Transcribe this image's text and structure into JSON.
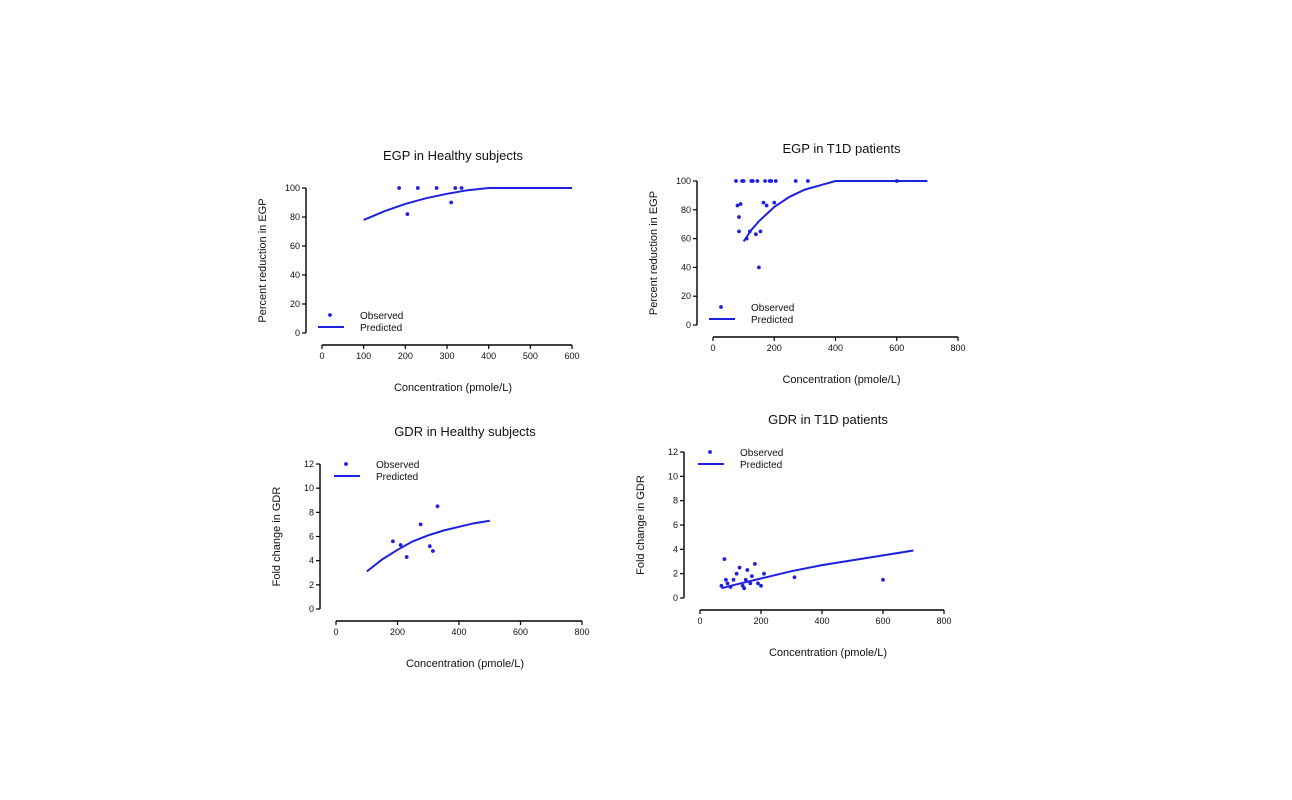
{
  "chart_data": [
    {
      "id": "egp-healthy",
      "type": "scatter",
      "title": "EGP in Healthy subjects",
      "xlabel": "Concentration (pmole/L)",
      "ylabel": "Percent reduction in EGP",
      "xlim": [
        0,
        600
      ],
      "ylim": [
        0,
        100
      ],
      "xticks": [
        "0",
        "100",
        "200",
        "300",
        "400",
        "500",
        "600"
      ],
      "yticks": [
        "0",
        "20",
        "40",
        "60",
        "80",
        "100"
      ],
      "legend": {
        "placement": "bottom-left",
        "observed": "Observed",
        "predicted": "Predicted"
      },
      "series": [
        {
          "name": "Observed",
          "kind": "points",
          "x": [
            185,
            205,
            230,
            275,
            310,
            320,
            335
          ],
          "y": [
            100,
            82,
            100,
            100,
            90,
            100,
            100
          ]
        },
        {
          "name": "Predicted",
          "kind": "line",
          "x": [
            100,
            150,
            200,
            250,
            300,
            350,
            400,
            430,
            500,
            600
          ],
          "y": [
            78,
            84,
            89,
            93,
            96,
            98.5,
            100,
            100,
            100,
            100
          ]
        }
      ]
    },
    {
      "id": "egp-t1d",
      "type": "scatter",
      "title": "EGP in T1D patients",
      "xlabel": "Concentration (pmole/L)",
      "ylabel": "Percent reduction in EGP",
      "xlim": [
        0,
        800
      ],
      "ylim": [
        0,
        100
      ],
      "xticks": [
        "0",
        "200",
        "400",
        "600",
        "800"
      ],
      "yticks": [
        "0",
        "20",
        "40",
        "60",
        "80",
        "100"
      ],
      "legend": {
        "placement": "bottom-left",
        "observed": "Observed",
        "predicted": "Predicted"
      },
      "series": [
        {
          "name": "Observed",
          "kind": "points",
          "x": [
            75,
            80,
            85,
            85,
            90,
            95,
            100,
            110,
            120,
            125,
            130,
            140,
            145,
            150,
            155,
            165,
            170,
            175,
            185,
            190,
            200,
            205,
            270,
            310,
            600
          ],
          "y": [
            100,
            83,
            75,
            65,
            84,
            100,
            100,
            60,
            65,
            100,
            100,
            63,
            100,
            40,
            65,
            85,
            100,
            83,
            100,
            100,
            85,
            100,
            100,
            100,
            100
          ]
        },
        {
          "name": "Predicted",
          "kind": "line",
          "x": [
            100,
            125,
            150,
            175,
            200,
            250,
            300,
            350,
            400,
            500,
            600,
            700
          ],
          "y": [
            58,
            66,
            72,
            77,
            82,
            89,
            94,
            97,
            100,
            100,
            100,
            100
          ]
        }
      ]
    },
    {
      "id": "gdr-healthy",
      "type": "scatter",
      "title": "GDR in Healthy subjects",
      "xlabel": "Concentration (pmole/L)",
      "ylabel": "Fold change in GDR",
      "xlim": [
        0,
        800
      ],
      "ylim": [
        0,
        12
      ],
      "xticks": [
        "0",
        "200",
        "400",
        "600",
        "800"
      ],
      "yticks": [
        "0",
        "2",
        "4",
        "6",
        "8",
        "10",
        "12"
      ],
      "legend": {
        "placement": "top-left",
        "observed": "Observed",
        "predicted": "Predicted"
      },
      "series": [
        {
          "name": "Observed",
          "kind": "points",
          "x": [
            185,
            210,
            230,
            275,
            305,
            315,
            330
          ],
          "y": [
            5.6,
            5.3,
            4.3,
            7.0,
            5.2,
            4.8,
            8.5
          ]
        },
        {
          "name": "Predicted",
          "kind": "line",
          "x": [
            100,
            150,
            200,
            250,
            300,
            350,
            400,
            450,
            500
          ],
          "y": [
            3.1,
            4.1,
            4.9,
            5.6,
            6.1,
            6.5,
            6.8,
            7.1,
            7.3
          ]
        }
      ]
    },
    {
      "id": "gdr-t1d",
      "type": "scatter",
      "title": "GDR in T1D patients",
      "xlabel": "Concentration (pmole/L)",
      "ylabel": "Fold change in GDR",
      "xlim": [
        0,
        800
      ],
      "ylim": [
        0,
        12
      ],
      "xticks": [
        "0",
        "200",
        "400",
        "600",
        "800"
      ],
      "yticks": [
        "0",
        "2",
        "4",
        "6",
        "8",
        "10",
        "12"
      ],
      "legend": {
        "placement": "top-left",
        "observed": "Observed",
        "predicted": "Predicted"
      },
      "series": [
        {
          "name": "Observed",
          "kind": "points",
          "x": [
            70,
            80,
            85,
            90,
            100,
            110,
            120,
            130,
            140,
            145,
            150,
            155,
            165,
            170,
            180,
            190,
            200,
            210,
            310,
            600
          ],
          "y": [
            1.0,
            3.2,
            1.5,
            1.2,
            0.9,
            1.5,
            2.0,
            2.5,
            1.0,
            0.8,
            1.5,
            2.3,
            1.2,
            1.8,
            2.8,
            1.2,
            1.0,
            2.0,
            1.7,
            1.5
          ]
        },
        {
          "name": "Predicted",
          "kind": "line",
          "x": [
            70,
            100,
            200,
            300,
            400,
            500,
            600,
            700
          ],
          "y": [
            0.8,
            1.0,
            1.6,
            2.2,
            2.7,
            3.1,
            3.5,
            3.9
          ]
        }
      ]
    }
  ]
}
